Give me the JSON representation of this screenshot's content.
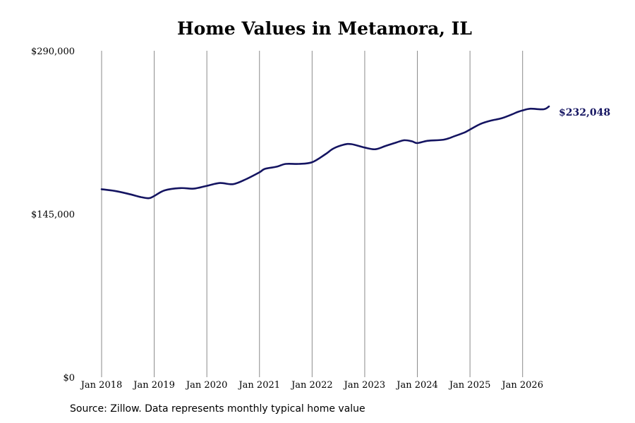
{
  "chart_data": {
    "type": "line",
    "title": "Home Values in Metamora, IL",
    "source": "Source: Zillow. Data represents monthly typical home value",
    "x_ticks": [
      {
        "label": "Jan 2018",
        "x": 2018.0
      },
      {
        "label": "Jan 2019",
        "x": 2019.0
      },
      {
        "label": "Jan 2020",
        "x": 2020.0
      },
      {
        "label": "Jan 2021",
        "x": 2021.0
      },
      {
        "label": "Jan 2022",
        "x": 2022.0
      },
      {
        "label": "Jan 2023",
        "x": 2023.0
      },
      {
        "label": "Jan 2024",
        "x": 2024.0
      },
      {
        "label": "Jan 2025",
        "x": 2025.0
      },
      {
        "label": "Jan 2026",
        "x": 2026.0
      }
    ],
    "y_ticks": [
      {
        "label": "$290,000",
        "value": 290000
      },
      {
        "label": "$145,000",
        "value": 145000
      },
      {
        "label": "$0",
        "value": 0
      }
    ],
    "xlim": [
      2018.0,
      2026.5
    ],
    "ylim": [
      0,
      290000
    ],
    "grid": {
      "vertical": true,
      "horizontal": false
    },
    "colors": {
      "line": "#141461",
      "grid": "#8a8a8a",
      "end_label": "#141461"
    },
    "end_label": "$232,048",
    "series": [
      {
        "points": [
          [
            2018.0,
            167000
          ],
          [
            2018.25,
            165500
          ],
          [
            2018.5,
            163000
          ],
          [
            2018.75,
            160000
          ],
          [
            2018.9,
            159000
          ],
          [
            2019.0,
            161000
          ],
          [
            2019.2,
            166000
          ],
          [
            2019.5,
            168000
          ],
          [
            2019.75,
            167500
          ],
          [
            2020.0,
            170000
          ],
          [
            2020.25,
            172500
          ],
          [
            2020.5,
            171500
          ],
          [
            2020.75,
            176000
          ],
          [
            2021.0,
            182000
          ],
          [
            2021.1,
            185000
          ],
          [
            2021.33,
            187000
          ],
          [
            2021.5,
            189500
          ],
          [
            2021.75,
            189500
          ],
          [
            2022.0,
            191000
          ],
          [
            2022.25,
            198000
          ],
          [
            2022.4,
            203000
          ],
          [
            2022.6,
            206500
          ],
          [
            2022.75,
            207000
          ],
          [
            2023.0,
            204000
          ],
          [
            2023.2,
            202500
          ],
          [
            2023.4,
            205500
          ],
          [
            2023.6,
            208500
          ],
          [
            2023.75,
            210500
          ],
          [
            2023.9,
            209500
          ],
          [
            2024.0,
            208000
          ],
          [
            2024.2,
            210000
          ],
          [
            2024.5,
            211000
          ],
          [
            2024.7,
            214000
          ],
          [
            2024.9,
            217500
          ],
          [
            2025.0,
            220000
          ],
          [
            2025.2,
            225000
          ],
          [
            2025.4,
            228000
          ],
          [
            2025.6,
            230000
          ],
          [
            2025.8,
            233500
          ],
          [
            2025.9,
            235500
          ],
          [
            2026.0,
            237000
          ],
          [
            2026.15,
            238500
          ],
          [
            2026.4,
            238000
          ],
          [
            2026.5,
            240500
          ]
        ]
      }
    ]
  }
}
